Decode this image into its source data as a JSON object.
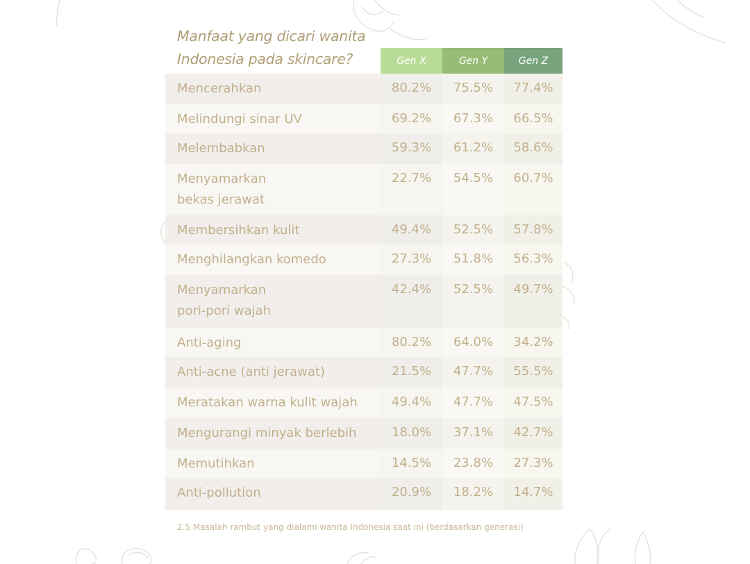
{
  "title_lines": [
    "Manfaat yang dicari wanita",
    "Indonesia pada skincare?"
  ],
  "caption": "2.5 Masalah rambut yang dialami wanita Indonesia saat ini (berdasarkan generasi)",
  "colors": {
    "gen_x_header": "#b8dc97",
    "gen_y_header": "#96bc75",
    "gen_z_header": "#77a47d",
    "text": "#c2b08c"
  },
  "chart_data": {
    "type": "table",
    "title": "Manfaat yang dicari wanita Indonesia pada skincare?",
    "columns": [
      "Gen X",
      "Gen Y",
      "Gen Z"
    ],
    "rows": [
      {
        "label": [
          "Mencerahkan"
        ],
        "values": [
          "80.2%",
          "75.5%",
          "77.4%"
        ]
      },
      {
        "label": [
          "Melindungi sinar UV"
        ],
        "values": [
          "69.2%",
          "67.3%",
          "66.5%"
        ]
      },
      {
        "label": [
          "Melembabkan"
        ],
        "values": [
          "59.3%",
          "61.2%",
          "58.6%"
        ]
      },
      {
        "label": [
          "Menyamarkan",
          "bekas jerawat"
        ],
        "values": [
          "22.7%",
          "54.5%",
          "60.7%"
        ]
      },
      {
        "label": [
          "Membersihkan kulit"
        ],
        "values": [
          "49.4%",
          "52.5%",
          "57.8%"
        ]
      },
      {
        "label": [
          "Menghilangkan komedo"
        ],
        "values": [
          "27.3%",
          "51.8%",
          "56.3%"
        ]
      },
      {
        "label": [
          "Menyamarkan",
          "pori-pori wajah"
        ],
        "values": [
          "42.4%",
          "52.5%",
          "49.7%"
        ]
      },
      {
        "label": [
          "Anti-aging"
        ],
        "values": [
          "80.2%",
          "64.0%",
          "34.2%"
        ]
      },
      {
        "label": [
          "Anti-acne (anti jerawat)"
        ],
        "values": [
          "21.5%",
          "47.7%",
          "55.5%"
        ]
      },
      {
        "label": [
          "Meratakan warna kulit wajah"
        ],
        "values": [
          "49.4%",
          "47.7%",
          "47.5%"
        ]
      },
      {
        "label": [
          "Mengurangi minyak berlebih"
        ],
        "values": [
          "18.0%",
          "37.1%",
          "42.7%"
        ]
      },
      {
        "label": [
          "Memutihkan"
        ],
        "values": [
          "14.5%",
          "23.8%",
          "27.3%"
        ]
      },
      {
        "label": [
          "Anti-pollution"
        ],
        "values": [
          "20.9%",
          "18.2%",
          "14.7%"
        ]
      }
    ]
  }
}
